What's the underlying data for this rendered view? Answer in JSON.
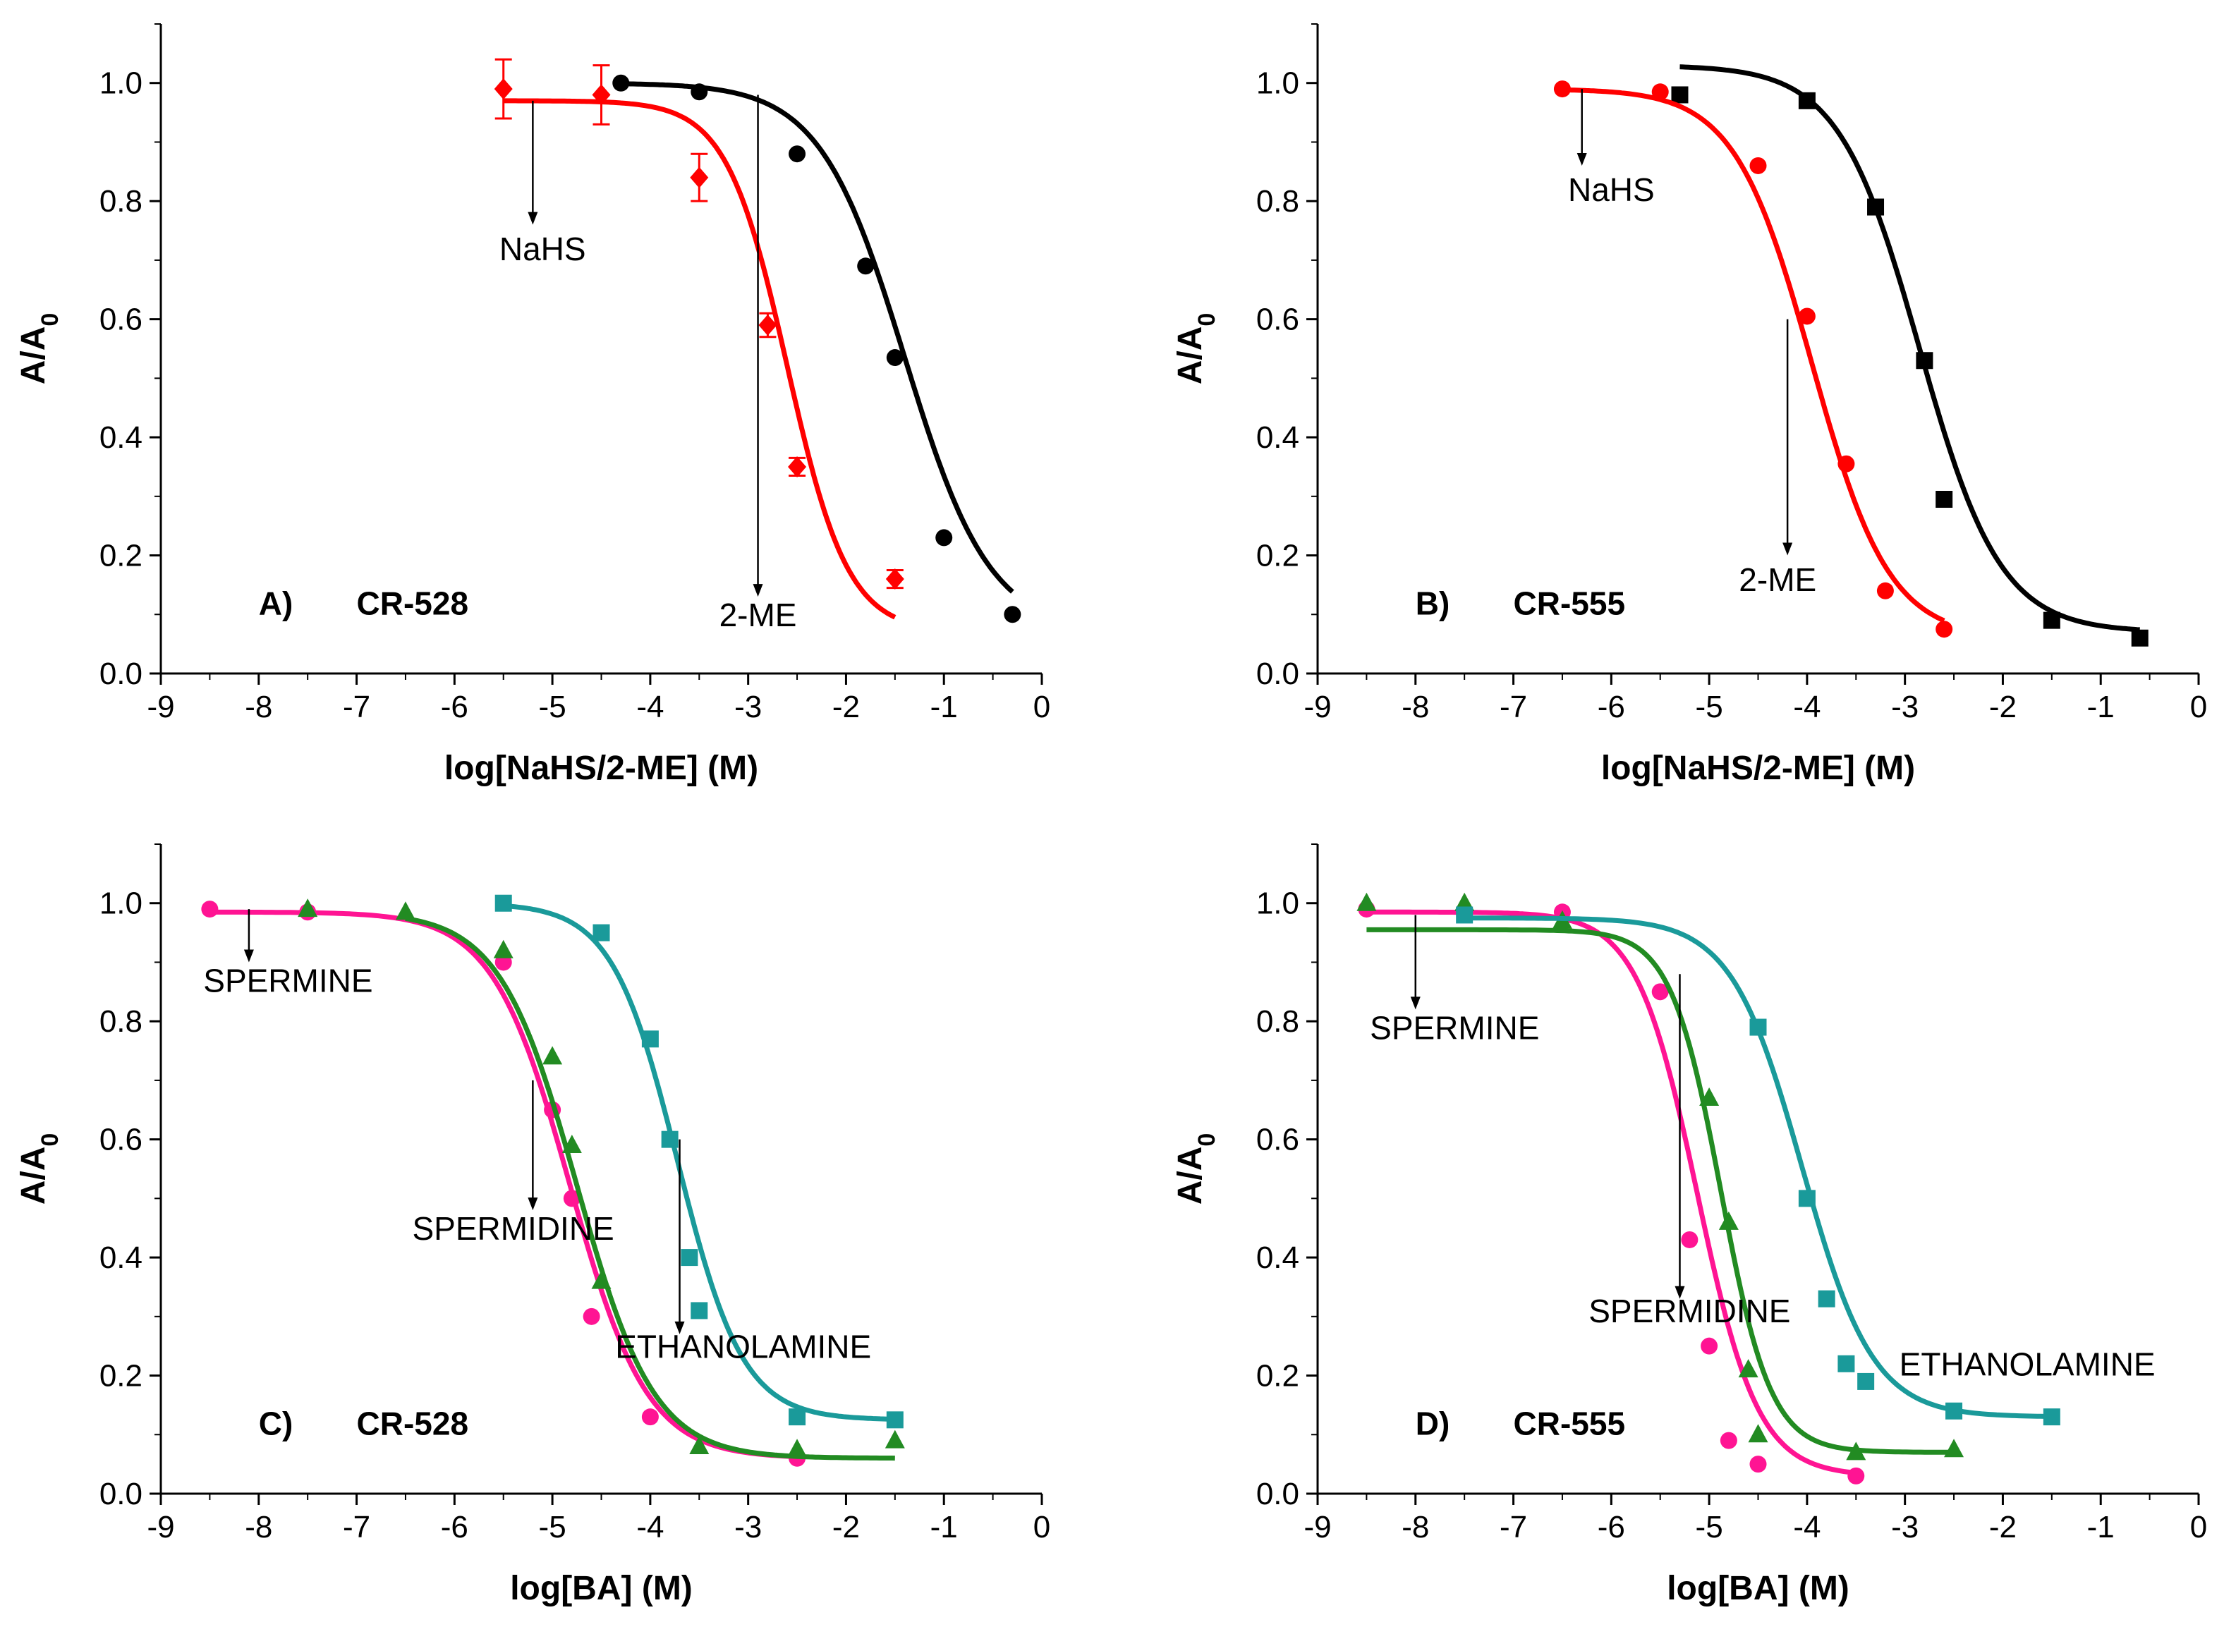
{
  "chart_data": [
    {
      "type": "scatter",
      "panel": "A)",
      "title": "CR-528",
      "xlabel": "log[NaHS/2-ME] (M)",
      "ylabel": "A/A0",
      "xlim": [
        -9,
        0
      ],
      "ylim": [
        0,
        1.1
      ],
      "xticks": [
        -9,
        -8,
        -7,
        -6,
        -5,
        -4,
        -3,
        -2,
        -1,
        0
      ],
      "yticks": [
        0.0,
        0.2,
        0.4,
        0.6,
        0.8,
        1.0
      ],
      "grid": false,
      "series": [
        {
          "name": "NaHS",
          "color": "#000000",
          "marker": "circle",
          "x": [
            -4.3,
            -3.5,
            -2.5,
            -1.8,
            -1.5,
            -1.0,
            -0.3
          ],
          "y": [
            1.0,
            0.985,
            0.88,
            0.69,
            0.535,
            0.23,
            0.1
          ],
          "fit": {
            "top": 1.0,
            "bottom": 0.07,
            "logEC50": -1.4,
            "hill": 1.0,
            "xmin": -4.3,
            "xmax": -0.3
          }
        },
        {
          "name": "2-ME",
          "color": "#ff0000",
          "marker": "diamond",
          "x": [
            -5.5,
            -4.5,
            -3.5,
            -2.8,
            -2.5,
            -1.5
          ],
          "y": [
            0.99,
            0.98,
            0.84,
            0.59,
            0.35,
            0.16
          ],
          "err": [
            0.05,
            0.05,
            0.04,
            0.02,
            0.015,
            0.015
          ],
          "fit": {
            "top": 0.97,
            "bottom": 0.07,
            "logEC50": -2.6,
            "hill": 1.4,
            "xmin": -5.5,
            "xmax": -1.5
          }
        }
      ],
      "annotations": [
        {
          "text": "NaHS",
          "arrow_from": [
            -5.2,
            0.97
          ],
          "arrow_to": [
            -5.2,
            0.76
          ]
        },
        {
          "text": "2-ME",
          "arrow_from": [
            -2.9,
            0.98
          ],
          "arrow_to": [
            -2.9,
            0.13
          ]
        }
      ]
    },
    {
      "type": "scatter",
      "panel": "B)",
      "title": "CR-555",
      "xlabel": "log[NaHS/2-ME] (M)",
      "ylabel": "A/A0",
      "xlim": [
        -9,
        0
      ],
      "ylim": [
        0,
        1.1
      ],
      "xticks": [
        -9,
        -8,
        -7,
        -6,
        -5,
        -4,
        -3,
        -2,
        -1,
        0
      ],
      "yticks": [
        0.0,
        0.2,
        0.4,
        0.6,
        0.8,
        1.0
      ],
      "grid": false,
      "series": [
        {
          "name": "NaHS",
          "color": "#000000",
          "marker": "square",
          "x": [
            -5.3,
            -4.0,
            -3.3,
            -2.8,
            -2.6,
            -1.5,
            -0.6
          ],
          "y": [
            0.98,
            0.97,
            0.79,
            0.53,
            0.295,
            0.09,
            0.06
          ],
          "fit": {
            "top": 1.03,
            "bottom": 0.07,
            "logEC50": -2.85,
            "hill": 1.05,
            "xmin": -5.3,
            "xmax": -0.6
          }
        },
        {
          "name": "2-ME",
          "color": "#ff0000",
          "marker": "circle",
          "x": [
            -6.5,
            -5.5,
            -4.5,
            -4.0,
            -3.6,
            -3.2,
            -2.6
          ],
          "y": [
            0.99,
            0.985,
            0.86,
            0.605,
            0.355,
            0.14,
            0.075
          ],
          "fit": {
            "top": 0.99,
            "bottom": 0.06,
            "logEC50": -3.95,
            "hill": 1.1,
            "xmin": -6.5,
            "xmax": -2.6
          }
        }
      ],
      "annotations": [
        {
          "text": "NaHS",
          "arrow_from": [
            -6.3,
            0.99
          ],
          "arrow_to": [
            -6.3,
            0.86
          ]
        },
        {
          "text": "2-ME",
          "arrow_from": [
            -4.2,
            0.6
          ],
          "arrow_to": [
            -4.2,
            0.2
          ]
        }
      ]
    },
    {
      "type": "scatter",
      "panel": "C)",
      "title": "CR-528",
      "xlabel": "log[BA] (M)",
      "ylabel": "A/A0",
      "xlim": [
        -9,
        0
      ],
      "ylim": [
        0,
        1.1
      ],
      "xticks": [
        -9,
        -8,
        -7,
        -6,
        -5,
        -4,
        -3,
        -2,
        -1,
        0
      ],
      "yticks": [
        0.0,
        0.2,
        0.4,
        0.6,
        0.8,
        1.0
      ],
      "grid": false,
      "series": [
        {
          "name": "SPERMINE",
          "color": "#ff1493",
          "marker": "circle",
          "x": [
            -8.5,
            -7.5,
            -5.5,
            -5.0,
            -4.8,
            -4.6,
            -4.0,
            -2.5
          ],
          "y": [
            0.99,
            0.985,
            0.9,
            0.65,
            0.5,
            0.3,
            0.13,
            0.06
          ],
          "fit": {
            "top": 0.985,
            "bottom": 0.06,
            "logEC50": -4.82,
            "hill": 1.1,
            "xmin": -8.5,
            "xmax": -2.5
          }
        },
        {
          "name": "SPERMIDINE",
          "color": "#228b22",
          "marker": "triangle",
          "x": [
            -7.5,
            -6.5,
            -5.5,
            -5.0,
            -4.8,
            -4.5,
            -3.5,
            -2.5,
            -1.5
          ],
          "y": [
            0.99,
            0.985,
            0.92,
            0.74,
            0.59,
            0.36,
            0.08,
            0.075,
            0.09
          ],
          "fit": {
            "top": 0.985,
            "bottom": 0.06,
            "logEC50": -4.75,
            "hill": 1.1,
            "xmin": -6.5,
            "xmax": -1.5
          }
        },
        {
          "name": "ETHANOLAMINE",
          "color": "#1a9a9a",
          "marker": "square",
          "x": [
            -5.5,
            -4.5,
            -4.0,
            -3.8,
            -3.6,
            -3.5,
            -2.5,
            -1.5
          ],
          "y": [
            1.0,
            0.95,
            0.77,
            0.6,
            0.4,
            0.31,
            0.13,
            0.125
          ],
          "fit": {
            "top": 1.0,
            "bottom": 0.125,
            "logEC50": -3.72,
            "hill": 1.3,
            "xmin": -5.5,
            "xmax": -1.5
          }
        }
      ],
      "annotations": [
        {
          "text": "SPERMINE",
          "arrow_from": [
            -8.1,
            0.99
          ],
          "arrow_to": [
            -8.1,
            0.9
          ]
        },
        {
          "text": "SPERMIDINE",
          "arrow_from": [
            -5.2,
            0.7
          ],
          "arrow_to": [
            -5.2,
            0.48
          ]
        },
        {
          "text": "ETHANOLAMINE",
          "arrow_from": [
            -3.7,
            0.6
          ],
          "arrow_to": [
            -3.7,
            0.27
          ]
        }
      ]
    },
    {
      "type": "scatter",
      "panel": "D)",
      "title": "CR-555",
      "xlabel": "log[BA] (M)",
      "ylabel": "A/A0",
      "xlim": [
        -9,
        0
      ],
      "ylim": [
        0,
        1.1
      ],
      "xticks": [
        -9,
        -8,
        -7,
        -6,
        -5,
        -4,
        -3,
        -2,
        -1,
        0
      ],
      "yticks": [
        0.0,
        0.2,
        0.4,
        0.6,
        0.8,
        1.0
      ],
      "grid": false,
      "series": [
        {
          "name": "SPERMINE",
          "color": "#ff1493",
          "marker": "circle",
          "x": [
            -8.5,
            -6.5,
            -5.5,
            -5.2,
            -5.0,
            -4.8,
            -4.5,
            -3.5
          ],
          "y": [
            0.99,
            0.985,
            0.85,
            0.43,
            0.25,
            0.09,
            0.05,
            0.03
          ],
          "fit": {
            "top": 0.985,
            "bottom": 0.03,
            "logEC50": -5.12,
            "hill": 1.4,
            "xmin": -8.5,
            "xmax": -3.5
          }
        },
        {
          "name": "SPERMIDINE",
          "color": "#228b22",
          "marker": "triangle",
          "x": [
            -8.5,
            -7.5,
            -6.5,
            -5.0,
            -4.8,
            -4.6,
            -4.5,
            -3.5,
            -2.5
          ],
          "y": [
            1.0,
            1.0,
            0.97,
            0.67,
            0.46,
            0.21,
            0.1,
            0.07,
            0.075
          ],
          "fit": {
            "top": 0.955,
            "bottom": 0.07,
            "logEC50": -4.88,
            "hill": 1.7,
            "xmin": -8.5,
            "xmax": -2.5
          }
        },
        {
          "name": "ETHANOLAMINE",
          "color": "#1a9a9a",
          "marker": "square",
          "x": [
            -7.5,
            -4.5,
            -4.0,
            -3.8,
            -3.6,
            -3.4,
            -2.5,
            -1.5
          ],
          "y": [
            0.98,
            0.79,
            0.5,
            0.33,
            0.22,
            0.19,
            0.14,
            0.13
          ],
          "fit": {
            "top": 0.975,
            "bottom": 0.13,
            "logEC50": -4.05,
            "hill": 1.2,
            "xmin": -7.5,
            "xmax": -1.5
          }
        }
      ],
      "annotations": [
        {
          "text": "SPERMINE",
          "arrow_from": [
            -8.0,
            0.98
          ],
          "arrow_to": [
            -8.0,
            0.82
          ]
        },
        {
          "text": "SPERMIDINE",
          "arrow_from": [
            -5.3,
            0.88
          ],
          "arrow_to": [
            -5.3,
            0.33
          ]
        },
        {
          "text": "ETHANOLAMINE",
          "arrow_from": null,
          "arrow_to": null
        }
      ]
    }
  ]
}
